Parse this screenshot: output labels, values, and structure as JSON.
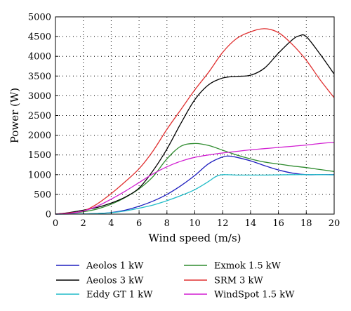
{
  "chart_data": {
    "type": "line",
    "title": "",
    "xlabel": "Wind speed (m/s)",
    "ylabel": "Power (W)",
    "xlim": [
      0,
      20
    ],
    "ylim": [
      0,
      5000
    ],
    "xticks": [
      "0",
      "2",
      "4",
      "6",
      "8",
      "10",
      "12",
      "14",
      "16",
      "18",
      "20"
    ],
    "yticks": [
      "0",
      "500",
      "1000",
      "1500",
      "2000",
      "2500",
      "3000",
      "3500",
      "4000",
      "4500",
      "5000"
    ],
    "grid": "dotted",
    "legend_position": "bottom",
    "series": [
      {
        "name": "Aeolos 1 kW",
        "color": "#1f1fbf",
        "x": [
          0,
          2,
          3,
          4,
          5,
          6,
          7,
          8,
          9,
          10,
          11,
          12,
          12.5,
          13,
          14,
          15,
          16,
          17,
          18,
          19,
          20
        ],
        "y": [
          0,
          5,
          15,
          40,
          100,
          200,
          330,
          500,
          720,
          980,
          1280,
          1450,
          1470,
          1440,
          1350,
          1230,
          1120,
          1040,
          1000,
          1000,
          1000
        ]
      },
      {
        "name": "Exmok 1.5 kW",
        "color": "#2e8b2e",
        "x": [
          0,
          1,
          2,
          3,
          4,
          5,
          6,
          7,
          8,
          9,
          10,
          11,
          12,
          13,
          14,
          15,
          16,
          17,
          18,
          19,
          20
        ],
        "y": [
          0,
          20,
          60,
          130,
          250,
          420,
          640,
          950,
          1400,
          1720,
          1790,
          1740,
          1620,
          1500,
          1400,
          1320,
          1270,
          1220,
          1180,
          1130,
          1080
        ]
      },
      {
        "name": "Aeolos 3 kW",
        "color": "#000000",
        "x": [
          0,
          1,
          2,
          3,
          4,
          5,
          6,
          7,
          8,
          9,
          10,
          11,
          12,
          13,
          14,
          15,
          16,
          17,
          17.5,
          18,
          19,
          20
        ],
        "y": [
          0,
          40,
          100,
          170,
          280,
          430,
          660,
          1100,
          1650,
          2300,
          2900,
          3280,
          3450,
          3490,
          3520,
          3700,
          4080,
          4420,
          4520,
          4500,
          4050,
          3550
        ]
      },
      {
        "name": "SRM 3 kW",
        "color": "#e03030",
        "x": [
          0,
          1,
          2,
          3,
          4,
          5,
          6,
          7,
          8,
          9,
          10,
          11,
          12,
          13,
          14,
          15,
          16,
          17,
          18,
          19,
          20
        ],
        "y": [
          0,
          30,
          80,
          260,
          520,
          820,
          1150,
          1600,
          2150,
          2650,
          3150,
          3600,
          4100,
          4450,
          4620,
          4700,
          4600,
          4300,
          3900,
          3400,
          2950
        ]
      },
      {
        "name": "Eddy GT 1 kW",
        "color": "#22bcc8",
        "x": [
          0,
          2,
          3,
          4,
          5,
          6,
          7,
          8,
          9,
          10,
          11,
          11.5,
          12,
          13,
          14,
          15,
          16,
          17,
          18,
          19,
          20
        ],
        "y": [
          0,
          5,
          15,
          35,
          80,
          150,
          230,
          340,
          470,
          620,
          830,
          950,
          1000,
          990,
          990,
          990,
          995,
          1000,
          1000,
          1000,
          995
        ]
      },
      {
        "name": "WindSpot 1.5 kW",
        "color": "#d21fd2",
        "x": [
          0,
          1,
          2,
          3,
          4,
          5,
          6,
          7,
          8,
          9,
          10,
          11,
          12,
          13,
          14,
          15,
          16,
          17,
          18,
          19,
          20
        ],
        "y": [
          0,
          20,
          80,
          200,
          380,
          580,
          800,
          1020,
          1200,
          1340,
          1440,
          1500,
          1550,
          1590,
          1630,
          1660,
          1690,
          1720,
          1750,
          1790,
          1820
        ]
      }
    ]
  }
}
